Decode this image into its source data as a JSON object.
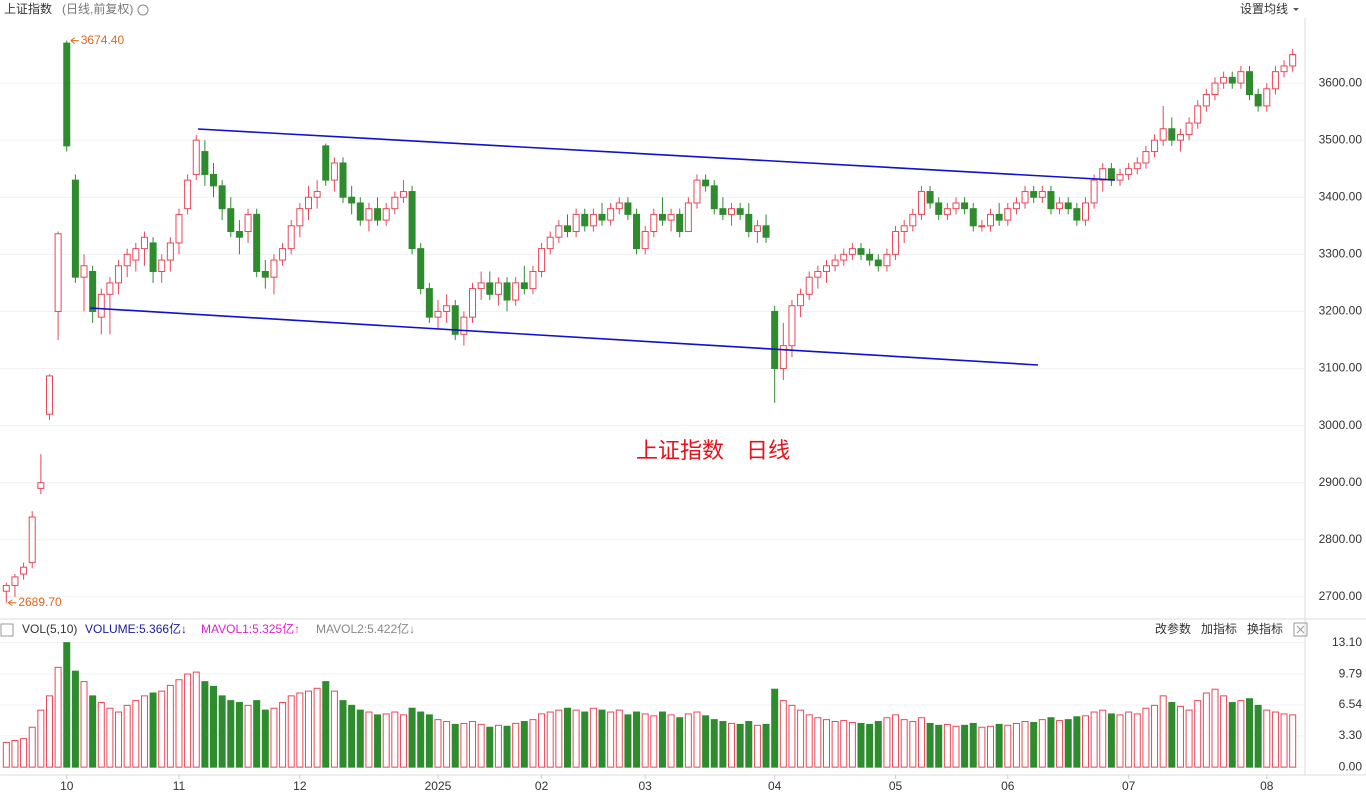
{
  "chart_data": {
    "type": "candlestick",
    "title": "上证指数",
    "subtitle": "(日线,前复权)",
    "menu": "设置均线",
    "annotation": "上证指数　日线",
    "high_label": {
      "value": 3674.4,
      "label": "3674.40"
    },
    "low_label": {
      "value": 2689.7,
      "label": "2689.70"
    },
    "up_color": "#e8485a",
    "down_color": "#2e8b2e",
    "ylim": [
      2663,
      3714
    ],
    "yticks": [
      {
        "value": 2700,
        "label": "2700.00"
      },
      {
        "value": 2800,
        "label": "2800.00"
      },
      {
        "value": 2900,
        "label": "2900.00"
      },
      {
        "value": 3000,
        "label": "3000.00"
      },
      {
        "value": 3100,
        "label": "3100.00"
      },
      {
        "value": 3200,
        "label": "3200.00"
      },
      {
        "value": 3300,
        "label": "3300.00"
      },
      {
        "value": 3400,
        "label": "3400.00"
      },
      {
        "value": 3500,
        "label": "3500.00"
      },
      {
        "value": 3600,
        "label": "3600.00"
      }
    ],
    "grid": true,
    "categories": [
      null,
      null,
      null,
      null,
      null,
      null,
      null,
      "10",
      null,
      null,
      null,
      null,
      null,
      null,
      null,
      null,
      null,
      null,
      null,
      null,
      "11",
      null,
      null,
      null,
      null,
      null,
      null,
      null,
      null,
      null,
      null,
      null,
      null,
      null,
      "12",
      null,
      null,
      null,
      null,
      null,
      null,
      null,
      null,
      null,
      null,
      null,
      null,
      null,
      null,
      null,
      "2025",
      null,
      null,
      null,
      null,
      null,
      null,
      null,
      null,
      null,
      null,
      null,
      "02",
      null,
      null,
      null,
      null,
      null,
      null,
      null,
      null,
      null,
      null,
      null,
      "03",
      null,
      null,
      null,
      null,
      null,
      null,
      null,
      null,
      null,
      null,
      null,
      null,
      null,
      null,
      "04",
      null,
      null,
      null,
      null,
      null,
      null,
      null,
      null,
      null,
      null,
      null,
      null,
      null,
      "05",
      null,
      null,
      null,
      null,
      null,
      null,
      null,
      null,
      null,
      null,
      null,
      null,
      "06",
      null,
      null,
      null,
      null,
      null,
      null,
      null,
      null,
      null,
      null,
      null,
      null,
      null,
      "07",
      null,
      null,
      null,
      null,
      null,
      null,
      null,
      null,
      null,
      null,
      null,
      null,
      null,
      null,
      null,
      "08",
      null,
      null,
      null
    ],
    "candles": [
      [
        2710,
        2725,
        2689.7,
        2720
      ],
      [
        2720,
        2740,
        2700,
        2735
      ],
      [
        2740,
        2760,
        2730,
        2752
      ],
      [
        2760,
        2850,
        2750,
        2840
      ],
      [
        2890,
        2950,
        2880,
        2900
      ],
      [
        3020,
        3090,
        3010,
        3087
      ],
      [
        3200,
        3340,
        3150,
        3336
      ],
      [
        3670,
        3674.4,
        3480,
        3490
      ],
      [
        3430,
        3440,
        3250,
        3260
      ],
      [
        3260,
        3300,
        3200,
        3280
      ],
      [
        3270,
        3280,
        3180,
        3200
      ],
      [
        3190,
        3240,
        3160,
        3230
      ],
      [
        3230,
        3260,
        3160,
        3250
      ],
      [
        3250,
        3290,
        3230,
        3280
      ],
      [
        3280,
        3310,
        3260,
        3300
      ],
      [
        3290,
        3320,
        3270,
        3310
      ],
      [
        3310,
        3340,
        3280,
        3330
      ],
      [
        3320,
        3330,
        3250,
        3270
      ],
      [
        3270,
        3300,
        3250,
        3290
      ],
      [
        3290,
        3330,
        3270,
        3320
      ],
      [
        3320,
        3380,
        3300,
        3370
      ],
      [
        3380,
        3440,
        3370,
        3430
      ],
      [
        3440,
        3509,
        3430,
        3500
      ],
      [
        3480,
        3500,
        3420,
        3440
      ],
      [
        3440,
        3460,
        3400,
        3420
      ],
      [
        3420,
        3430,
        3360,
        3380
      ],
      [
        3380,
        3400,
        3330,
        3340
      ],
      [
        3340,
        3360,
        3300,
        3330
      ],
      [
        3340,
        3380,
        3320,
        3370
      ],
      [
        3370,
        3380,
        3260,
        3270
      ],
      [
        3270,
        3290,
        3240,
        3260
      ],
      [
        3260,
        3300,
        3230,
        3290
      ],
      [
        3290,
        3320,
        3280,
        3310
      ],
      [
        3310,
        3360,
        3300,
        3350
      ],
      [
        3350,
        3390,
        3330,
        3380
      ],
      [
        3380,
        3420,
        3360,
        3400
      ],
      [
        3400,
        3430,
        3380,
        3410
      ],
      [
        3490,
        3494,
        3420,
        3430
      ],
      [
        3430,
        3470,
        3410,
        3460
      ],
      [
        3460,
        3470,
        3390,
        3400
      ],
      [
        3400,
        3420,
        3370,
        3390
      ],
      [
        3390,
        3400,
        3350,
        3360
      ],
      [
        3360,
        3390,
        3340,
        3380
      ],
      [
        3380,
        3400,
        3350,
        3360
      ],
      [
        3360,
        3390,
        3350,
        3380
      ],
      [
        3380,
        3410,
        3370,
        3400
      ],
      [
        3400,
        3430,
        3390,
        3410
      ],
      [
        3410,
        3420,
        3300,
        3310
      ],
      [
        3310,
        3320,
        3230,
        3240
      ],
      [
        3240,
        3250,
        3180,
        3190
      ],
      [
        3190,
        3220,
        3170,
        3200
      ],
      [
        3200,
        3230,
        3180,
        3210
      ],
      [
        3210,
        3220,
        3150,
        3160
      ],
      [
        3160,
        3200,
        3140,
        3190
      ],
      [
        3190,
        3250,
        3180,
        3240
      ],
      [
        3240,
        3270,
        3220,
        3250
      ],
      [
        3250,
        3270,
        3220,
        3230
      ],
      [
        3230,
        3260,
        3210,
        3250
      ],
      [
        3250,
        3260,
        3200,
        3220
      ],
      [
        3220,
        3260,
        3210,
        3250
      ],
      [
        3250,
        3280,
        3230,
        3240
      ],
      [
        3240,
        3280,
        3230,
        3270
      ],
      [
        3270,
        3320,
        3260,
        3310
      ],
      [
        3310,
        3340,
        3300,
        3330
      ],
      [
        3330,
        3360,
        3320,
        3350
      ],
      [
        3350,
        3370,
        3330,
        3340
      ],
      [
        3340,
        3380,
        3330,
        3370
      ],
      [
        3370,
        3380,
        3340,
        3350
      ],
      [
        3350,
        3380,
        3340,
        3370
      ],
      [
        3370,
        3390,
        3350,
        3360
      ],
      [
        3360,
        3390,
        3350,
        3380
      ],
      [
        3380,
        3400,
        3370,
        3390
      ],
      [
        3390,
        3400,
        3360,
        3370
      ],
      [
        3370,
        3380,
        3300,
        3310
      ],
      [
        3310,
        3350,
        3300,
        3340
      ],
      [
        3340,
        3380,
        3330,
        3370
      ],
      [
        3370,
        3400,
        3350,
        3360
      ],
      [
        3360,
        3380,
        3340,
        3370
      ],
      [
        3370,
        3380,
        3330,
        3340
      ],
      [
        3340,
        3400,
        3340,
        3390
      ],
      [
        3390,
        3440,
        3380,
        3430
      ],
      [
        3430,
        3440,
        3410,
        3420
      ],
      [
        3420,
        3430,
        3370,
        3380
      ],
      [
        3380,
        3400,
        3360,
        3370
      ],
      [
        3370,
        3390,
        3350,
        3380
      ],
      [
        3380,
        3390,
        3360,
        3370
      ],
      [
        3370,
        3390,
        3330,
        3340
      ],
      [
        3340,
        3360,
        3320,
        3350
      ],
      [
        3350,
        3370,
        3320,
        3330
      ],
      [
        3200,
        3210,
        3040,
        3100
      ],
      [
        3100,
        3180,
        3080,
        3140
      ],
      [
        3140,
        3220,
        3120,
        3210
      ],
      [
        3210,
        3240,
        3190,
        3230
      ],
      [
        3230,
        3270,
        3220,
        3260
      ],
      [
        3260,
        3280,
        3240,
        3270
      ],
      [
        3270,
        3290,
        3250,
        3280
      ],
      [
        3280,
        3300,
        3270,
        3290
      ],
      [
        3290,
        3310,
        3280,
        3300
      ],
      [
        3300,
        3320,
        3290,
        3310
      ],
      [
        3310,
        3320,
        3290,
        3300
      ],
      [
        3300,
        3310,
        3280,
        3290
      ],
      [
        3290,
        3300,
        3270,
        3280
      ],
      [
        3280,
        3310,
        3270,
        3300
      ],
      [
        3300,
        3350,
        3290,
        3340
      ],
      [
        3340,
        3360,
        3320,
        3350
      ],
      [
        3350,
        3380,
        3340,
        3370
      ],
      [
        3370,
        3420,
        3360,
        3410
      ],
      [
        3410,
        3420,
        3380,
        3390
      ],
      [
        3390,
        3400,
        3360,
        3370
      ],
      [
        3370,
        3390,
        3360,
        3380
      ],
      [
        3380,
        3400,
        3370,
        3390
      ],
      [
        3390,
        3400,
        3370,
        3380
      ],
      [
        3380,
        3390,
        3340,
        3350
      ],
      [
        3350,
        3360,
        3340,
        3350
      ],
      [
        3350,
        3380,
        3340,
        3370
      ],
      [
        3370,
        3390,
        3350,
        3360
      ],
      [
        3360,
        3390,
        3350,
        3380
      ],
      [
        3380,
        3400,
        3370,
        3390
      ],
      [
        3390,
        3420,
        3380,
        3410
      ],
      [
        3410,
        3420,
        3390,
        3400
      ],
      [
        3400,
        3420,
        3390,
        3410
      ],
      [
        3410,
        3420,
        3370,
        3380
      ],
      [
        3380,
        3400,
        3370,
        3390
      ],
      [
        3390,
        3400,
        3370,
        3380
      ],
      [
        3380,
        3390,
        3350,
        3360
      ],
      [
        3360,
        3400,
        3350,
        3390
      ],
      [
        3390,
        3440,
        3380,
        3430
      ],
      [
        3430,
        3460,
        3410,
        3450
      ],
      [
        3450,
        3460,
        3420,
        3430
      ],
      [
        3430,
        3450,
        3420,
        3440
      ],
      [
        3440,
        3460,
        3430,
        3450
      ],
      [
        3450,
        3470,
        3440,
        3460
      ],
      [
        3460,
        3490,
        3450,
        3480
      ],
      [
        3480,
        3510,
        3470,
        3500
      ],
      [
        3500,
        3560,
        3490,
        3520
      ],
      [
        3520,
        3540,
        3490,
        3500
      ],
      [
        3500,
        3520,
        3480,
        3510
      ],
      [
        3510,
        3540,
        3500,
        3530
      ],
      [
        3530,
        3570,
        3520,
        3560
      ],
      [
        3560,
        3590,
        3550,
        3580
      ],
      [
        3580,
        3610,
        3570,
        3600
      ],
      [
        3600,
        3620,
        3590,
        3610
      ],
      [
        3610,
        3620,
        3590,
        3600
      ],
      [
        3600,
        3630,
        3590,
        3620
      ],
      [
        3620,
        3630,
        3570,
        3580
      ],
      [
        3580,
        3590,
        3550,
        3560
      ],
      [
        3560,
        3600,
        3550,
        3590
      ],
      [
        3590,
        3630,
        3580,
        3620
      ],
      [
        3620,
        3640,
        3610,
        3630
      ],
      [
        3630,
        3660,
        3620,
        3650
      ]
    ],
    "volume": {
      "label": "VOL(5,10)",
      "volume_text": "VOLUME:5.366亿↓",
      "mavol1_text": "MAVOL1:5.325亿↑",
      "mavol2_text": "MAVOL2:5.422亿↓",
      "buttons": [
        "改参数",
        "加指标",
        "换指标"
      ],
      "ylim": [
        -0.3,
        13.8
      ],
      "yticks": [
        {
          "value": 0,
          "label": "0.00"
        },
        {
          "value": 3.3,
          "label": "3.30"
        },
        {
          "value": 6.54,
          "label": "6.54"
        },
        {
          "value": 9.79,
          "label": "9.79"
        },
        {
          "value": 13.1,
          "label": "13.10"
        }
      ],
      "values": [
        2.6,
        2.8,
        3.0,
        4.2,
        6.0,
        7.5,
        10.5,
        13.1,
        10.1,
        9.0,
        7.5,
        6.8,
        6.2,
        5.8,
        6.5,
        7.0,
        7.5,
        7.8,
        8.0,
        8.6,
        9.2,
        9.8,
        10.0,
        9.0,
        8.5,
        7.5,
        7.0,
        6.8,
        6.5,
        7.0,
        6.0,
        6.2,
        6.8,
        7.5,
        7.8,
        8.0,
        8.3,
        9.0,
        8.0,
        7.0,
        6.5,
        6.0,
        5.8,
        5.5,
        5.6,
        5.8,
        5.5,
        6.2,
        5.8,
        5.5,
        5.0,
        4.8,
        4.5,
        4.6,
        4.8,
        4.5,
        4.2,
        4.4,
        4.3,
        4.6,
        4.8,
        5.0,
        5.6,
        5.8,
        6.0,
        6.2,
        6.0,
        5.8,
        6.2,
        6.0,
        5.8,
        6.0,
        5.5,
        5.8,
        5.6,
        5.4,
        5.8,
        5.5,
        5.2,
        5.6,
        5.8,
        5.4,
        5.0,
        4.8,
        4.6,
        4.5,
        4.8,
        4.4,
        4.5,
        8.2,
        7.0,
        6.5,
        6.0,
        5.5,
        5.2,
        5.0,
        4.8,
        4.9,
        4.7,
        4.6,
        4.5,
        4.8,
        5.2,
        5.5,
        5.0,
        4.8,
        5.2,
        4.6,
        4.4,
        4.5,
        4.3,
        4.4,
        4.6,
        4.2,
        4.3,
        4.5,
        4.4,
        4.6,
        4.8,
        4.7,
        5.0,
        5.2,
        4.9,
        5.0,
        5.3,
        5.4,
        5.8,
        6.0,
        5.6,
        5.5,
        5.8,
        5.6,
        6.2,
        6.5,
        7.5,
        6.8,
        6.4,
        6.0,
        7.0,
        7.8,
        8.2,
        7.5,
        6.8,
        7.0,
        7.2,
        6.5,
        6.0,
        5.8,
        5.6,
        5.5
      ]
    }
  }
}
